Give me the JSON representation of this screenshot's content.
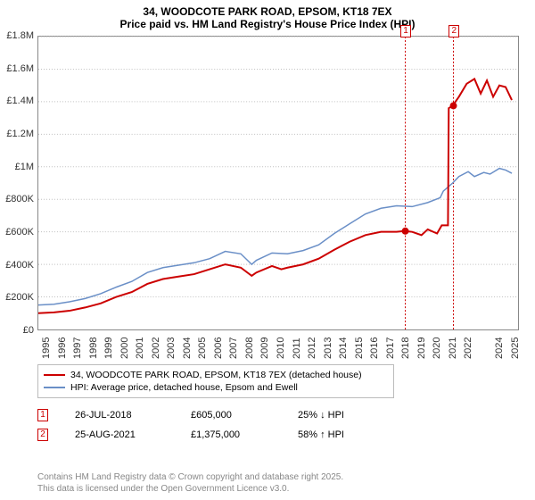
{
  "title_line1": "34, WOODCOTE PARK ROAD, EPSOM, KT18 7EX",
  "title_line2": "Price paid vs. HM Land Registry's House Price Index (HPI)",
  "chart": {
    "type": "line",
    "xlim": [
      1995,
      2025.8
    ],
    "ylim": [
      0,
      1800000
    ],
    "ytick_step": 200000,
    "yticks": [
      "£0",
      "£200K",
      "£400K",
      "£600K",
      "£800K",
      "£1M",
      "£1.2M",
      "£1.4M",
      "£1.6M",
      "£1.8M"
    ],
    "xticks": [
      1995,
      1996,
      1997,
      1998,
      1999,
      2000,
      2001,
      2002,
      2003,
      2004,
      2005,
      2006,
      2007,
      2008,
      2009,
      2010,
      2011,
      2012,
      2013,
      2014,
      2015,
      2016,
      2017,
      2018,
      2019,
      2020,
      2021,
      2022,
      2024,
      2025
    ],
    "grid_color": "#bfbfbf",
    "background_color": "#ffffff",
    "series": [
      {
        "name": "price_paid",
        "label": "34, WOODCOTE PARK ROAD, EPSOM, KT18 7EX (detached house)",
        "color": "#cc0000",
        "width": 2,
        "data": [
          [
            1995,
            100000
          ],
          [
            1996,
            105000
          ],
          [
            1997,
            115000
          ],
          [
            1998,
            135000
          ],
          [
            1999,
            160000
          ],
          [
            2000,
            200000
          ],
          [
            2001,
            230000
          ],
          [
            2002,
            280000
          ],
          [
            2003,
            310000
          ],
          [
            2004,
            325000
          ],
          [
            2005,
            340000
          ],
          [
            2006,
            370000
          ],
          [
            2007,
            400000
          ],
          [
            2008,
            380000
          ],
          [
            2008.7,
            330000
          ],
          [
            2009,
            350000
          ],
          [
            2010,
            390000
          ],
          [
            2010.6,
            370000
          ],
          [
            2011,
            380000
          ],
          [
            2012,
            400000
          ],
          [
            2013,
            435000
          ],
          [
            2014,
            490000
          ],
          [
            2015,
            540000
          ],
          [
            2016,
            580000
          ],
          [
            2017,
            600000
          ],
          [
            2018,
            600000
          ],
          [
            2018.5,
            605000
          ],
          [
            2019,
            600000
          ],
          [
            2019.6,
            580000
          ],
          [
            2020,
            615000
          ],
          [
            2020.6,
            590000
          ],
          [
            2020.9,
            640000
          ],
          [
            2021,
            640000
          ],
          [
            2021.3,
            640000
          ],
          [
            2021.35,
            1360000
          ],
          [
            2021.6,
            1375000
          ],
          [
            2022,
            1430000
          ],
          [
            2022.5,
            1510000
          ],
          [
            2023,
            1540000
          ],
          [
            2023.4,
            1450000
          ],
          [
            2023.8,
            1530000
          ],
          [
            2024.2,
            1430000
          ],
          [
            2024.6,
            1500000
          ],
          [
            2025,
            1490000
          ],
          [
            2025.4,
            1410000
          ]
        ]
      },
      {
        "name": "hpi",
        "label": "HPI: Average price, detached house, Epsom and Ewell",
        "color": "#6a8fc7",
        "width": 1.5,
        "data": [
          [
            1995,
            150000
          ],
          [
            1996,
            155000
          ],
          [
            1997,
            170000
          ],
          [
            1998,
            190000
          ],
          [
            1999,
            220000
          ],
          [
            2000,
            260000
          ],
          [
            2001,
            295000
          ],
          [
            2002,
            350000
          ],
          [
            2003,
            380000
          ],
          [
            2004,
            395000
          ],
          [
            2005,
            410000
          ],
          [
            2006,
            435000
          ],
          [
            2007,
            480000
          ],
          [
            2008,
            465000
          ],
          [
            2008.7,
            400000
          ],
          [
            2009,
            425000
          ],
          [
            2010,
            470000
          ],
          [
            2011,
            465000
          ],
          [
            2012,
            485000
          ],
          [
            2013,
            520000
          ],
          [
            2014,
            590000
          ],
          [
            2015,
            650000
          ],
          [
            2016,
            710000
          ],
          [
            2017,
            745000
          ],
          [
            2018,
            760000
          ],
          [
            2019,
            755000
          ],
          [
            2020,
            780000
          ],
          [
            2020.8,
            810000
          ],
          [
            2021,
            850000
          ],
          [
            2021.6,
            900000
          ],
          [
            2022,
            940000
          ],
          [
            2022.6,
            970000
          ],
          [
            2023,
            940000
          ],
          [
            2023.6,
            965000
          ],
          [
            2024,
            955000
          ],
          [
            2024.6,
            990000
          ],
          [
            2025,
            980000
          ],
          [
            2025.4,
            960000
          ]
        ]
      }
    ],
    "events": [
      {
        "n": "1",
        "x": 2018.56,
        "date": "26-JUL-2018",
        "price": "£605,000",
        "delta": "25% ↓ HPI",
        "marker_y": 605000,
        "marker_color": "#cc0000"
      },
      {
        "n": "2",
        "x": 2021.65,
        "date": "25-AUG-2021",
        "price": "£1,375,000",
        "delta": "58% ↑ HPI",
        "marker_y": 1375000,
        "marker_color": "#cc0000"
      }
    ]
  },
  "footer_line1": "Contains HM Land Registry data © Crown copyright and database right 2025.",
  "footer_line2": "This data is licensed under the Open Government Licence v3.0."
}
